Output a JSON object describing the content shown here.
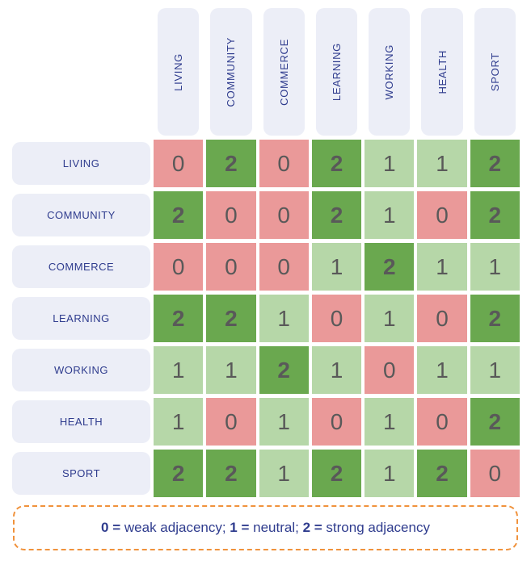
{
  "chart_data": {
    "type": "heatmap",
    "title": "",
    "x_categories": [
      "LIVING",
      "COMMUNITY",
      "COMMERCE",
      "LEARNING",
      "WORKING",
      "HEALTH",
      "SPORT"
    ],
    "y_categories": [
      "LIVING",
      "COMMUNITY",
      "COMMERCE",
      "LEARNING",
      "WORKING",
      "HEALTH",
      "SPORT"
    ],
    "values": [
      [
        0,
        2,
        0,
        2,
        1,
        1,
        2
      ],
      [
        2,
        0,
        0,
        2,
        1,
        0,
        2
      ],
      [
        0,
        0,
        0,
        1,
        2,
        1,
        1
      ],
      [
        2,
        2,
        1,
        0,
        1,
        0,
        2
      ],
      [
        1,
        1,
        2,
        1,
        0,
        1,
        1
      ],
      [
        1,
        0,
        1,
        0,
        1,
        0,
        2
      ],
      [
        2,
        2,
        1,
        2,
        1,
        2,
        0
      ]
    ],
    "value_colors": {
      "0": "#ea9999",
      "1": "#b6d7a8",
      "2": "#6aa84f"
    },
    "legend_position": "bottom",
    "grid": false
  },
  "legend": {
    "full_text": "0 = weak adjacency; 1 = neutral; 2 = strong adjacency",
    "segments": [
      {
        "text": "0 = ",
        "bold": true
      },
      {
        "text": "weak adjacency; ",
        "bold": false
      },
      {
        "text": "1 = ",
        "bold": true
      },
      {
        "text": "neutral; ",
        "bold": false
      },
      {
        "text": "2 = ",
        "bold": true
      },
      {
        "text": "strong adjacency",
        "bold": false
      }
    ]
  },
  "colors": {
    "page_bg": "#ffffff",
    "header_bg": "#eceef7",
    "header_text": "#2f3c8e",
    "cell_text": "#595959",
    "legend_border": "#f0923c",
    "legend_text": "#2f3c8e"
  }
}
